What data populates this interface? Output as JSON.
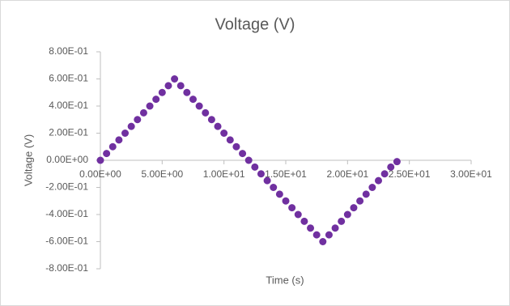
{
  "chart_data": {
    "type": "scatter",
    "title": "Voltage (V)",
    "x_label": "Time (s)",
    "y_label": "Voltage (V)",
    "series": [
      {
        "name": "Voltage (V)",
        "color": "#7030a0",
        "x": [
          0,
          0.5,
          1,
          1.5,
          2,
          2.5,
          3,
          3.5,
          4,
          4.5,
          5,
          5.5,
          6,
          6.5,
          7,
          7.5,
          8,
          8.5,
          9,
          9.5,
          10,
          10.5,
          11,
          11.5,
          12,
          12.5,
          13,
          13.5,
          14,
          14.5,
          15,
          15.5,
          16,
          16.5,
          17,
          17.5,
          18,
          18.5,
          19,
          19.5,
          20,
          20.5,
          21,
          21.5,
          22,
          22.5,
          23,
          23.5,
          24
        ],
        "values": [
          0,
          0.05,
          0.1,
          0.15,
          0.2,
          0.25,
          0.3,
          0.35,
          0.4,
          0.45,
          0.5,
          0.55,
          0.6,
          0.55,
          0.5,
          0.45,
          0.4,
          0.35,
          0.3,
          0.25,
          0.2,
          0.15,
          0.1,
          0.05,
          0,
          -0.05,
          -0.1,
          -0.15,
          -0.2,
          -0.25,
          -0.3,
          -0.35,
          -0.4,
          -0.45,
          -0.5,
          -0.55,
          -0.6,
          -0.55,
          -0.5,
          -0.45,
          -0.4,
          -0.35,
          -0.3,
          -0.25,
          -0.2,
          -0.15,
          -0.1,
          -0.05,
          -0.01
        ]
      }
    ],
    "xlim": [
      0,
      30
    ],
    "xticks": [
      {
        "value": 0,
        "label": "0.00E+00"
      },
      {
        "value": 5,
        "label": "5.00E+00"
      },
      {
        "value": 10,
        "label": "1.00E+01"
      },
      {
        "value": 15,
        "label": "1.50E+01"
      },
      {
        "value": 20,
        "label": "2.00E+01"
      },
      {
        "value": 25,
        "label": "2.50E+01"
      },
      {
        "value": 30,
        "label": "3.00E+01"
      }
    ],
    "ylim": [
      -0.8,
      0.8
    ],
    "yticks": [
      {
        "value": -0.8,
        "label": "-8.00E-01"
      },
      {
        "value": -0.6,
        "label": "-6.00E-01"
      },
      {
        "value": -0.4,
        "label": "-4.00E-01"
      },
      {
        "value": -0.2,
        "label": "-2.00E-01"
      },
      {
        "value": 0,
        "label": "0.00E+00"
      },
      {
        "value": 0.2,
        "label": "2.00E-01"
      },
      {
        "value": 0.4,
        "label": "4.00E-01"
      },
      {
        "value": 0.6,
        "label": "6.00E-01"
      },
      {
        "value": 0.8,
        "label": "8.00E-01"
      }
    ],
    "grid": false
  }
}
